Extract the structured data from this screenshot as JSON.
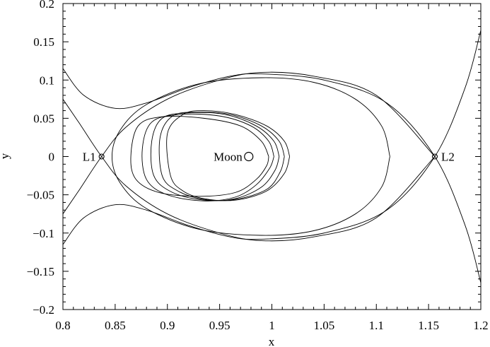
{
  "chart_data": {
    "type": "line",
    "title": "",
    "xlabel": "x",
    "ylabel": "y",
    "xlim": [
      0.8,
      1.2
    ],
    "ylim": [
      -0.2,
      0.2
    ],
    "grid": false,
    "x_ticks": [
      0.8,
      0.85,
      0.9,
      0.95,
      1.0,
      1.05,
      1.1,
      1.15,
      1.2
    ],
    "x_tick_labels": [
      "0.8",
      "0.85",
      "0.9",
      "0.95",
      "1",
      "1.05",
      "1.1",
      "1.15",
      "1.2"
    ],
    "y_ticks": [
      -0.2,
      -0.15,
      -0.1,
      -0.05,
      0.0,
      0.05,
      0.1,
      0.15,
      0.2
    ],
    "y_tick_labels": [
      "−0.2",
      "−0.15",
      "−0.1",
      "−0.05",
      "0",
      "0.05",
      "0.1",
      "0.15",
      "0.2"
    ],
    "points": [
      {
        "label": "L1",
        "x": 0.837,
        "y": 0.0
      },
      {
        "label": "L2",
        "x": 1.156,
        "y": 0.0
      },
      {
        "label": "Moon",
        "x": 0.988,
        "y": 0.0
      }
    ],
    "series": [
      {
        "x": [
          0.8,
          0.815,
          0.837,
          0.86,
          0.9,
          0.95,
          0.99,
          1.04,
          1.1,
          1.156
        ],
        "y": [
          0.075,
          0.045,
          0.0,
          -0.038,
          -0.075,
          -0.1,
          -0.11,
          -0.105,
          -0.08,
          0.0
        ]
      },
      {
        "x": [
          0.8,
          0.815,
          0.837,
          0.86,
          0.9,
          0.95,
          0.99,
          1.04,
          1.1,
          1.156
        ],
        "y": [
          -0.075,
          -0.045,
          0.0,
          0.038,
          0.075,
          0.1,
          0.11,
          0.105,
          0.08,
          0.0
        ]
      },
      {
        "x": [
          0.8,
          0.82,
          0.85,
          0.88,
          0.92,
          0.96,
          0.99,
          1.05,
          1.11,
          1.156,
          1.185,
          1.2
        ],
        "y": [
          0.115,
          0.08,
          0.063,
          0.07,
          0.09,
          0.105,
          0.108,
          0.1,
          0.07,
          0.0,
          -0.09,
          -0.165
        ]
      },
      {
        "x": [
          0.8,
          0.82,
          0.85,
          0.88,
          0.92,
          0.96,
          0.99,
          1.05,
          1.11,
          1.156,
          1.185,
          1.2
        ],
        "y": [
          -0.115,
          -0.08,
          -0.063,
          -0.07,
          -0.09,
          -0.105,
          -0.108,
          -0.1,
          -0.07,
          0.0,
          0.09,
          0.165
        ]
      },
      {
        "x": [
          1.113,
          1.105,
          1.08,
          1.04,
          0.99,
          0.93,
          0.88,
          0.855,
          0.847,
          0.855,
          0.88,
          0.93,
          0.99,
          1.04,
          1.08,
          1.105,
          1.113
        ],
        "y": [
          0.0,
          0.04,
          0.075,
          0.097,
          0.103,
          0.095,
          0.068,
          0.035,
          0.0,
          -0.035,
          -0.068,
          -0.095,
          -0.103,
          -0.097,
          -0.075,
          -0.04,
          0.0
        ]
      },
      {
        "x": [
          1.017,
          1.012,
          0.995,
          0.965,
          0.935,
          0.915,
          0.9,
          0.903,
          0.915,
          0.935,
          0.965,
          0.995,
          1.012,
          1.017
        ],
        "y": [
          0.0,
          0.02,
          0.04,
          0.055,
          0.06,
          0.055,
          0.03,
          -0.025,
          -0.045,
          -0.055,
          -0.057,
          -0.045,
          -0.022,
          0.0
        ]
      },
      {
        "x": [
          1.012,
          1.007,
          0.99,
          0.96,
          0.928,
          0.905,
          0.893,
          0.895,
          0.91,
          0.935,
          0.965,
          0.995,
          1.008,
          1.012
        ],
        "y": [
          0.0,
          0.02,
          0.04,
          0.055,
          0.058,
          0.053,
          0.025,
          -0.025,
          -0.045,
          -0.056,
          -0.056,
          -0.043,
          -0.02,
          0.0
        ]
      },
      {
        "x": [
          1.007,
          1.002,
          0.985,
          0.955,
          0.92,
          0.895,
          0.885,
          0.887,
          0.905,
          0.935,
          0.965,
          0.99,
          1.003,
          1.007
        ],
        "y": [
          0.0,
          0.02,
          0.04,
          0.055,
          0.057,
          0.05,
          0.02,
          -0.025,
          -0.047,
          -0.057,
          -0.055,
          -0.04,
          -0.018,
          0.0
        ]
      },
      {
        "x": [
          1.002,
          0.997,
          0.98,
          0.95,
          0.912,
          0.885,
          0.876,
          0.88,
          0.9,
          0.935,
          0.965,
          0.985,
          0.998,
          1.002
        ],
        "y": [
          0.0,
          0.02,
          0.04,
          0.053,
          0.055,
          0.045,
          0.01,
          -0.03,
          -0.05,
          -0.058,
          -0.053,
          -0.037,
          -0.015,
          0.0
        ]
      },
      {
        "x": [
          0.997,
          0.99,
          0.97,
          0.935,
          0.895,
          0.872,
          0.865,
          0.87,
          0.892,
          0.93,
          0.965,
          0.985,
          0.995,
          0.997
        ],
        "y": [
          0.0,
          0.02,
          0.04,
          0.05,
          0.052,
          0.04,
          0.0,
          -0.03,
          -0.047,
          -0.052,
          -0.047,
          -0.03,
          -0.012,
          0.0
        ]
      }
    ]
  }
}
